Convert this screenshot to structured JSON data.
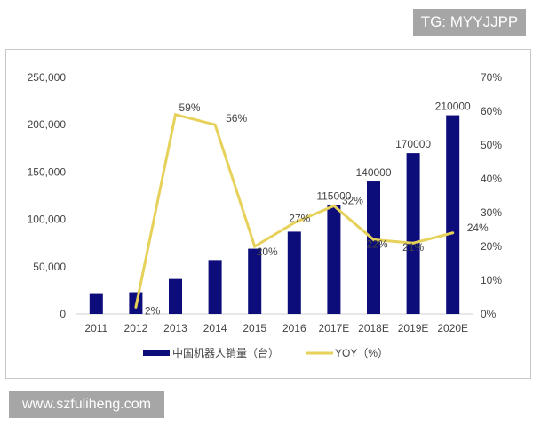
{
  "watermarks": {
    "top": "TG: MYYJJPP",
    "bottom": "www.szfuliheng.com"
  },
  "chart_data": {
    "type": "bar+line",
    "categories": [
      "2011",
      "2012",
      "2013",
      "2014",
      "2015",
      "2016",
      "2017E",
      "2018E",
      "2019E",
      "2020E"
    ],
    "series": [
      {
        "name": "中国机器人销量（台）",
        "type": "bar",
        "axis": "left",
        "color": "#0c0c7a",
        "values": [
          22000,
          23000,
          37000,
          57000,
          69000,
          87000,
          115000,
          140000,
          170000,
          210000
        ],
        "labels": [
          "",
          "",
          "",
          "",
          "",
          "",
          "115000",
          "140000",
          "170000",
          "210000"
        ]
      },
      {
        "name": "YOY（%）",
        "type": "line",
        "axis": "right",
        "color": "#e6d15a",
        "values": [
          null,
          2,
          59,
          56,
          20,
          27,
          32,
          22,
          21,
          24
        ],
        "labels": [
          "",
          "2%",
          "59%",
          "56%",
          "20%",
          "27%",
          "32%",
          "22%",
          "21%",
          "24%"
        ]
      }
    ],
    "left_axis": {
      "ylim": [
        0,
        250000
      ],
      "ticks": [
        "0",
        "50,000",
        "100,000",
        "150,000",
        "200,000",
        "250,000"
      ]
    },
    "right_axis": {
      "ylim": [
        0,
        70
      ],
      "ticks": [
        "0%",
        "10%",
        "20%",
        "30%",
        "40%",
        "50%",
        "60%",
        "70%"
      ]
    },
    "legend": "bottom",
    "grid": false
  }
}
